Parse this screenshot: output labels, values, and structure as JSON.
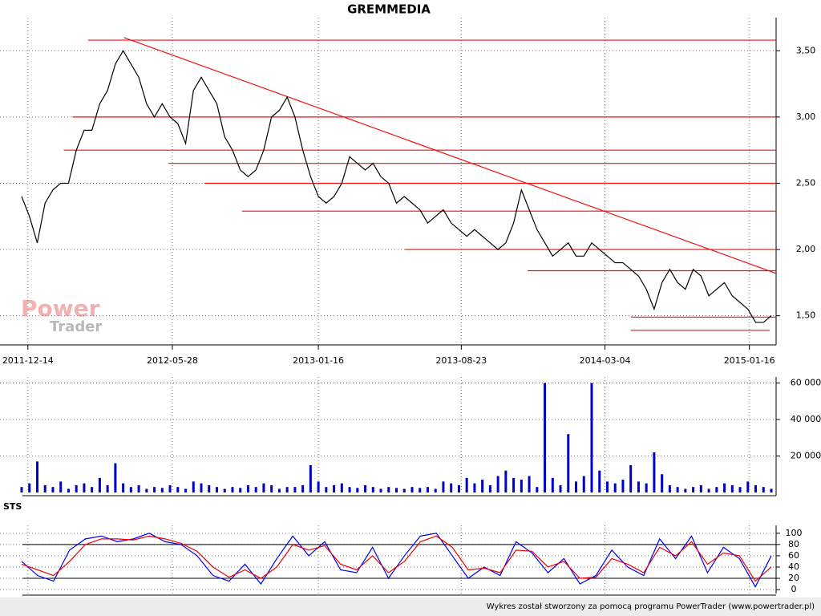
{
  "chart_data": [
    {
      "type": "line",
      "title": "GREMMEDIA",
      "color": "#000000",
      "values": [
        2.4,
        2.25,
        2.05,
        2.35,
        2.45,
        2.5,
        2.5,
        2.75,
        2.9,
        2.9,
        3.1,
        3.2,
        3.4,
        3.5,
        3.4,
        3.3,
        3.1,
        3.0,
        3.1,
        3.0,
        2.95,
        2.8,
        3.2,
        3.3,
        3.2,
        3.1,
        2.85,
        2.75,
        2.6,
        2.55,
        2.6,
        2.75,
        3.0,
        3.05,
        3.15,
        3.0,
        2.75,
        2.55,
        2.4,
        2.35,
        2.4,
        2.5,
        2.7,
        2.65,
        2.6,
        2.65,
        2.55,
        2.5,
        2.35,
        2.4,
        2.35,
        2.3,
        2.2,
        2.25,
        2.3,
        2.2,
        2.15,
        2.1,
        2.15,
        2.1,
        2.05,
        2.0,
        2.05,
        2.2,
        2.45,
        2.3,
        2.15,
        2.05,
        1.95,
        2.0,
        2.05,
        1.95,
        1.95,
        2.05,
        2.0,
        1.95,
        1.9,
        1.9,
        1.85,
        1.8,
        1.7,
        1.55,
        1.75,
        1.85,
        1.75,
        1.7,
        1.85,
        1.8,
        1.65,
        1.7,
        1.75,
        1.65,
        1.6,
        1.55,
        1.45,
        1.45,
        1.5
      ],
      "xlim": [
        0,
        96
      ],
      "xticks": [
        {
          "value": 0.8,
          "label": "2011-12-14"
        },
        {
          "value": 19.3,
          "label": "2012-05-28"
        },
        {
          "value": 38,
          "label": "2013-01-16"
        },
        {
          "value": 56.3,
          "label": "2013-08-23"
        },
        {
          "value": 74.7,
          "label": "2014-03-04"
        },
        {
          "value": 93.2,
          "label": "2015-01-16"
        }
      ],
      "ylim": [
        1.28,
        3.75
      ],
      "yticks": [
        {
          "value": 1.5,
          "label": "1,50"
        },
        {
          "value": 2.0,
          "label": "2,00"
        },
        {
          "value": 2.5,
          "label": "2,50"
        },
        {
          "value": 3.0,
          "label": "3,00"
        },
        {
          "value": 3.5,
          "label": "3,50"
        }
      ],
      "grid": true,
      "line_color": "#ee1111",
      "levels": [
        {
          "value": 3.58,
          "from": 8.5,
          "to": 96.6
        },
        {
          "value": 3.0,
          "from": 6.5,
          "to": 96.6
        },
        {
          "value": 2.75,
          "from": 5.4,
          "to": 96.6
        },
        {
          "value": 2.65,
          "from": 18.8,
          "to": 96.6
        },
        {
          "value": 2.5,
          "from": 23.4,
          "to": 96.6
        },
        {
          "value": 2.29,
          "from": 28.2,
          "to": 96.6
        },
        {
          "value": 2.0,
          "from": 49.1,
          "to": 96.6
        },
        {
          "value": 1.84,
          "from": 64.8,
          "to": 96.6
        },
        {
          "value": 1.49,
          "from": 78.0,
          "to": 96.6
        },
        {
          "value": 1.39,
          "from": 78.0,
          "to": 95.8
        }
      ],
      "trend": {
        "x": [
          13.1,
          96.6
        ],
        "y": [
          3.6,
          1.82
        ]
      },
      "logo": {
        "top": "Power",
        "bottom": "Trader"
      }
    },
    {
      "type": "bar",
      "color": "#0000cc",
      "values": [
        3000,
        5000,
        17000,
        4000,
        3000,
        6000,
        2000,
        4000,
        5000,
        3000,
        8000,
        4000,
        16000,
        5000,
        3000,
        4000,
        2000,
        3000,
        2500,
        4000,
        3000,
        2000,
        6000,
        5000,
        4000,
        3000,
        2000,
        3000,
        2500,
        4000,
        3000,
        5000,
        4000,
        2000,
        3000,
        3000,
        4000,
        15000,
        6000,
        3000,
        4000,
        5000,
        3000,
        2500,
        4000,
        3000,
        2000,
        3000,
        2500,
        2000,
        3000,
        2500,
        3000,
        2000,
        6000,
        5000,
        4000,
        8000,
        5000,
        7000,
        4000,
        9000,
        12000,
        8000,
        7000,
        9000,
        3000,
        60000,
        8000,
        4000,
        32000,
        6000,
        9000,
        60000,
        12000,
        6000,
        5000,
        7000,
        15000,
        6000,
        5000,
        22000,
        10000,
        4000,
        3000,
        2000,
        3000,
        4000,
        2000,
        3000,
        5000,
        4000,
        3000,
        6000,
        4000,
        3000,
        2000
      ],
      "xlim": [
        0,
        96
      ],
      "ylim": [
        0,
        63300
      ],
      "yticks": [
        {
          "value": 20000,
          "label": "20 000"
        },
        {
          "value": 40000,
          "label": "40 000"
        },
        {
          "value": 60000,
          "label": "60 000"
        }
      ],
      "grid": true
    },
    {
      "type": "line",
      "title": "STS",
      "series": [
        {
          "color": "#0000ee",
          "values": [
            50,
            25,
            15,
            70,
            90,
            95,
            85,
            90,
            100,
            85,
            80,
            60,
            25,
            15,
            45,
            10,
            55,
            95,
            60,
            85,
            35,
            30,
            75,
            20,
            60,
            95,
            100,
            60,
            20,
            40,
            25,
            85,
            65,
            30,
            55,
            10,
            25,
            70,
            40,
            25,
            90,
            55,
            95,
            30,
            75,
            55,
            5,
            60
          ]
        },
        {
          "color": "#ee0000",
          "values": [
            45,
            35,
            25,
            50,
            80,
            90,
            90,
            88,
            95,
            90,
            82,
            68,
            40,
            22,
            35,
            20,
            40,
            80,
            70,
            78,
            45,
            35,
            60,
            30,
            50,
            85,
            95,
            75,
            35,
            38,
            30,
            70,
            68,
            40,
            50,
            20,
            22,
            55,
            45,
            30,
            75,
            60,
            85,
            45,
            65,
            60,
            15,
            40
          ]
        }
      ],
      "xlim": [
        0,
        47
      ],
      "ylim": [
        -7,
        114
      ],
      "yticks": [
        0,
        20,
        40,
        60,
        80,
        100
      ],
      "levels": [
        20,
        80
      ],
      "grid": true,
      "footer": "Wykres został stworzony za pomocą programu PowerTrader (www.powertrader.pl)"
    }
  ]
}
